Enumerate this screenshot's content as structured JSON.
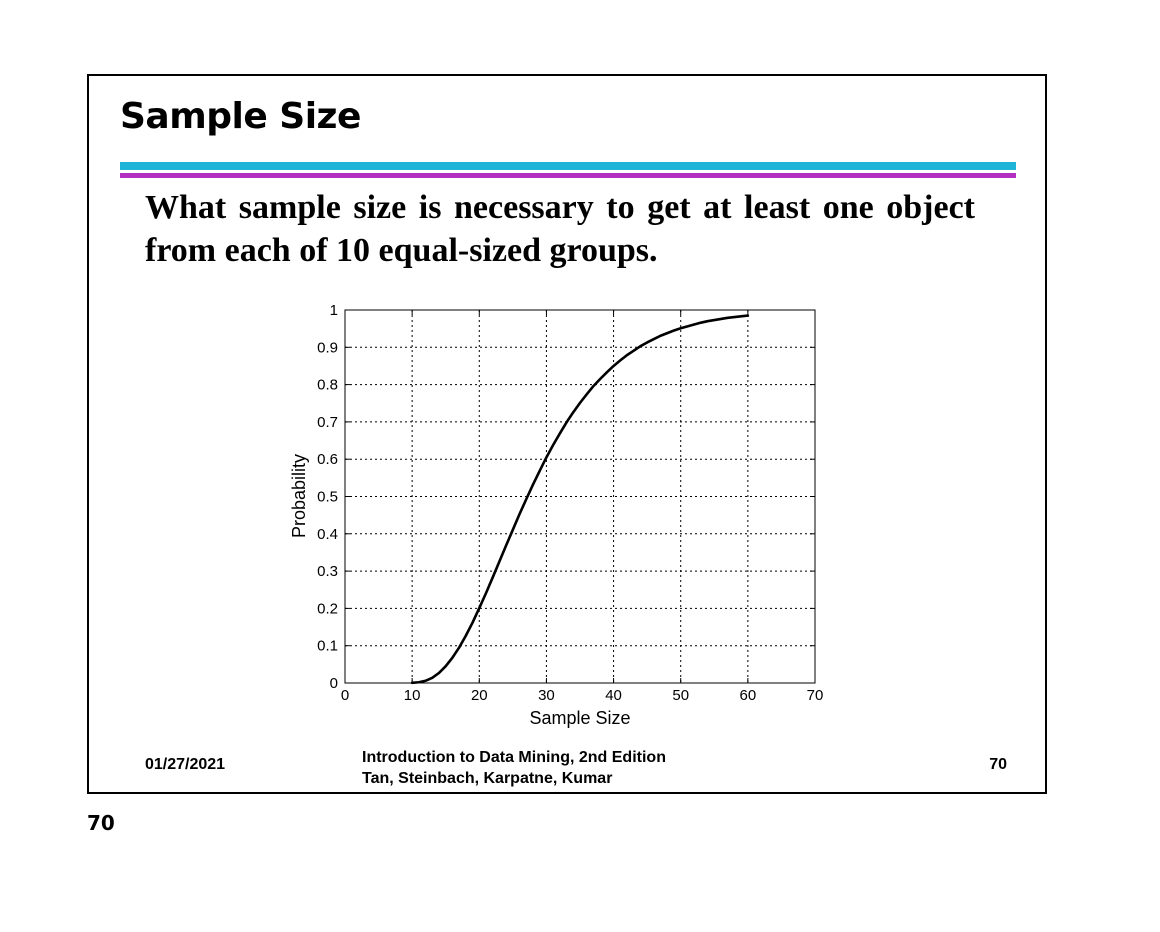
{
  "slide": {
    "title": "Sample Size",
    "question": "What sample size is necessary to get at least one object from each of 10 equal-sized groups.",
    "footer": {
      "date": "01/27/2021",
      "book_title": "Introduction to Data Mining, 2nd Edition",
      "authors": "Tan, Steinbach, Karpatne, Kumar",
      "slide_number": "70"
    },
    "accent_colors": {
      "cyan": "#1fb4d8",
      "magenta": "#b22fc1"
    }
  },
  "page_number": "70",
  "chart_data": {
    "type": "line",
    "title": "",
    "xlabel": "Sample Size",
    "ylabel": "Probability",
    "xlim": [
      0,
      70
    ],
    "ylim": [
      0,
      1
    ],
    "grid": true,
    "x_ticks": [
      "0",
      "10",
      "20",
      "30",
      "40",
      "50",
      "60",
      "70"
    ],
    "y_ticks": [
      "0",
      "0.1",
      "0.2",
      "0.3",
      "0.4",
      "0.5",
      "0.6",
      "0.7",
      "0.8",
      "0.9",
      "1"
    ],
    "series": [
      {
        "x": [
          10,
          11,
          12,
          13,
          14,
          15,
          16,
          17,
          18,
          19,
          20,
          21,
          22,
          23,
          24,
          25,
          26,
          27,
          28,
          29,
          30,
          31,
          32,
          33,
          34,
          35,
          36,
          37,
          38,
          39,
          40,
          41,
          42,
          43,
          44,
          45,
          46,
          47,
          48,
          49,
          50,
          51,
          52,
          53,
          54,
          55,
          56,
          57,
          58,
          59,
          60
        ],
        "y": [
          0.0004,
          0.002,
          0.006,
          0.014,
          0.027,
          0.045,
          0.068,
          0.095,
          0.127,
          0.162,
          0.201,
          0.241,
          0.283,
          0.326,
          0.369,
          0.411,
          0.453,
          0.493,
          0.532,
          0.569,
          0.605,
          0.638,
          0.669,
          0.699,
          0.726,
          0.751,
          0.774,
          0.796,
          0.815,
          0.833,
          0.85,
          0.865,
          0.879,
          0.891,
          0.903,
          0.913,
          0.922,
          0.931,
          0.938,
          0.945,
          0.951,
          0.956,
          0.961,
          0.966,
          0.97,
          0.973,
          0.976,
          0.979,
          0.981,
          0.983,
          0.985
        ]
      }
    ]
  }
}
